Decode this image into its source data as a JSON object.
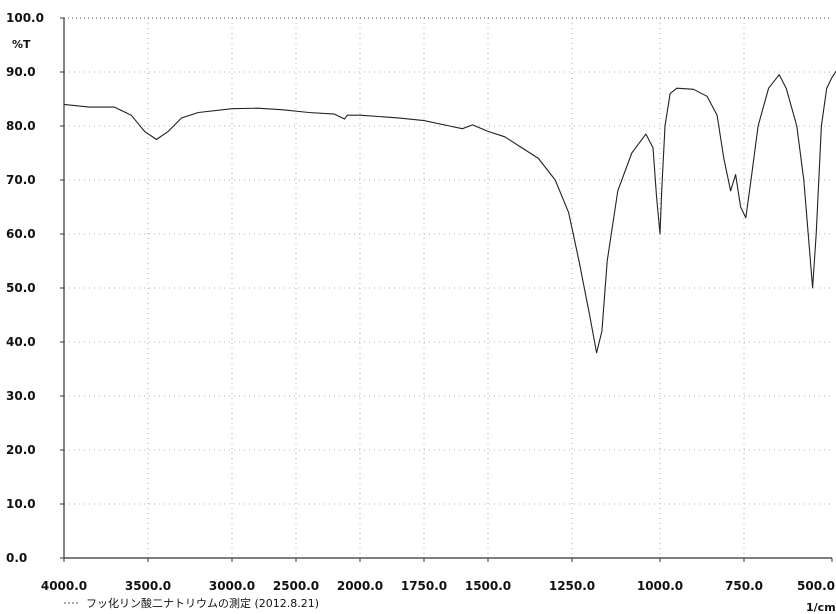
{
  "chart_data": {
    "type": "line",
    "ylabel": "%T",
    "xlabel": "1/cm",
    "ylim": [
      0,
      100
    ],
    "y_ticks": [
      "100.0",
      "90.0",
      "80.0",
      "70.0",
      "60.0",
      "50.0",
      "40.0",
      "30.0",
      "20.0",
      "10.0",
      "0.0"
    ],
    "x_ticks": [
      "4000.0",
      "3500.0",
      "3000.0",
      "2500.0",
      "2000.0",
      "1750.0",
      "1500.0",
      "1250.0",
      "1000.0",
      "750.0",
      "500.0"
    ],
    "grid": true,
    "legend_position": "bottom-left",
    "series": [
      {
        "name": "フッ化リン酸二ナトリウムの測定 (2012.8.21)",
        "color": "#222222",
        "points": [
          [
            4000,
            84
          ],
          [
            3850,
            83.5
          ],
          [
            3700,
            83.5
          ],
          [
            3600,
            82
          ],
          [
            3520,
            79
          ],
          [
            3450,
            77.5
          ],
          [
            3380,
            79
          ],
          [
            3300,
            81.5
          ],
          [
            3200,
            82.5
          ],
          [
            3000,
            83.2
          ],
          [
            2800,
            83.3
          ],
          [
            2600,
            83
          ],
          [
            2400,
            82.5
          ],
          [
            2200,
            82.2
          ],
          [
            2120,
            81.3
          ],
          [
            2100,
            82
          ],
          [
            2000,
            82
          ],
          [
            1850,
            81.5
          ],
          [
            1750,
            81
          ],
          [
            1650,
            80
          ],
          [
            1600,
            79.5
          ],
          [
            1560,
            80.2
          ],
          [
            1500,
            79
          ],
          [
            1450,
            78
          ],
          [
            1400,
            76
          ],
          [
            1350,
            74
          ],
          [
            1300,
            70
          ],
          [
            1260,
            64
          ],
          [
            1230,
            55
          ],
          [
            1200,
            45
          ],
          [
            1180,
            38
          ],
          [
            1165,
            42
          ],
          [
            1150,
            55
          ],
          [
            1120,
            68
          ],
          [
            1080,
            75
          ],
          [
            1040,
            78.5
          ],
          [
            1020,
            76
          ],
          [
            1010,
            67
          ],
          [
            1000,
            60
          ],
          [
            995,
            68
          ],
          [
            985,
            80
          ],
          [
            970,
            86
          ],
          [
            950,
            87
          ],
          [
            900,
            86.8
          ],
          [
            860,
            85.5
          ],
          [
            830,
            82
          ],
          [
            810,
            74
          ],
          [
            790,
            68
          ],
          [
            775,
            71
          ],
          [
            760,
            65
          ],
          [
            745,
            63
          ],
          [
            730,
            70
          ],
          [
            710,
            80
          ],
          [
            680,
            87
          ],
          [
            650,
            89.5
          ],
          [
            630,
            87
          ],
          [
            600,
            80
          ],
          [
            580,
            70
          ],
          [
            565,
            58
          ],
          [
            555,
            50
          ],
          [
            545,
            60
          ],
          [
            530,
            80
          ],
          [
            515,
            87
          ],
          [
            500,
            89
          ],
          [
            490,
            90
          ],
          [
            480,
            91
          ]
        ]
      }
    ]
  }
}
